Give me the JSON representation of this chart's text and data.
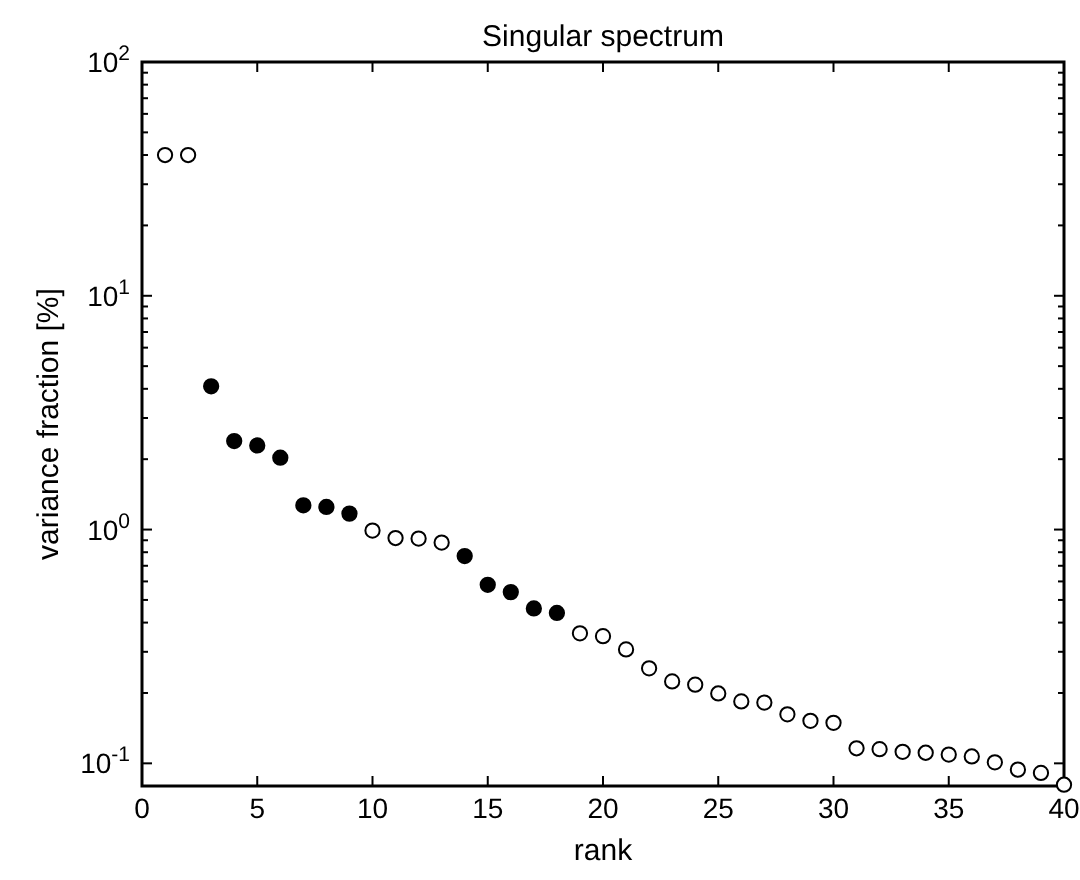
{
  "chart_data": {
    "type": "scatter",
    "title": "Singular spectrum",
    "xlabel": "rank",
    "ylabel": "variance fraction [%]",
    "log": "y",
    "grid": false,
    "marker": "circle",
    "xlim": [
      0,
      40
    ],
    "xticks": [
      0,
      5,
      10,
      15,
      20,
      25,
      30,
      35,
      40
    ],
    "ylim": [
      0.08,
      100
    ],
    "yticks": [
      {
        "value": 0.1,
        "label": "10$^{-1}$"
      },
      {
        "value": 0.2,
        "label": null
      },
      {
        "value": 0.3,
        "label": null
      },
      {
        "value": 0.4,
        "label": null
      },
      {
        "value": 0.5,
        "label": null
      },
      {
        "value": 0.6,
        "label": null
      },
      {
        "value": 0.7,
        "label": null
      },
      {
        "value": 0.8,
        "label": null
      },
      {
        "value": 0.9,
        "label": null
      },
      {
        "value": 1,
        "label": "10$^{0}$"
      },
      {
        "value": 2,
        "label": null
      },
      {
        "value": 3,
        "label": null
      },
      {
        "value": 4,
        "label": null
      },
      {
        "value": 5,
        "label": null
      },
      {
        "value": 6,
        "label": null
      },
      {
        "value": 7,
        "label": null
      },
      {
        "value": 8,
        "label": null
      },
      {
        "value": 9,
        "label": null
      },
      {
        "value": 10,
        "label": "10$^{1}$"
      },
      {
        "value": 20,
        "label": null
      },
      {
        "value": 30,
        "label": null
      },
      {
        "value": 40,
        "label": null
      },
      {
        "value": 50,
        "label": null
      },
      {
        "value": 60,
        "label": null
      },
      {
        "value": 70,
        "label": null
      },
      {
        "value": 80,
        "label": null
      },
      {
        "value": 90,
        "label": null
      },
      {
        "value": 100,
        "label": "10$^{2}$"
      }
    ],
    "series": [
      {
        "color": "#000000",
        "x": [
          3,
          4,
          5,
          6,
          7,
          8,
          9,
          14,
          15,
          16,
          17,
          18
        ],
        "values": [
          4.1,
          2.39,
          2.29,
          2.03,
          1.27,
          1.25,
          1.17,
          0.77,
          0.58,
          0.54,
          0.46,
          0.44
        ]
      },
      {
        "color": "#ffffff",
        "x": [
          1,
          2,
          10,
          11,
          12,
          13,
          19,
          20,
          21,
          22,
          23,
          24,
          25,
          26,
          27,
          28,
          29,
          30,
          31,
          32,
          33,
          34,
          35,
          36,
          37,
          38,
          39,
          40
        ],
        "values": [
          40,
          40,
          0.99,
          0.92,
          0.915,
          0.88,
          0.36,
          0.35,
          0.307,
          0.255,
          0.224,
          0.217,
          0.199,
          0.184,
          0.182,
          0.162,
          0.152,
          0.149,
          0.116,
          0.115,
          0.112,
          0.111,
          0.109,
          0.107,
          0.101,
          0.094,
          0.091,
          0.081
        ]
      }
    ]
  }
}
